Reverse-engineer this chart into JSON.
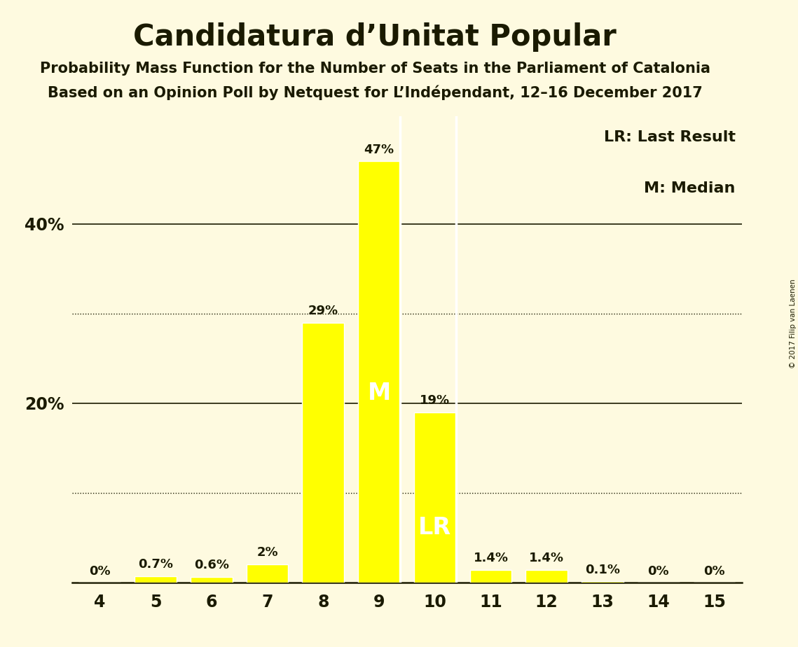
{
  "title": "Candidatura d’Unitat Popular",
  "subtitle1": "Probability Mass Function for the Number of Seats in the Parliament of Catalonia",
  "subtitle2": "Based on an Opinion Poll by Netquest for L’Indépendant, 12–16 December 2017",
  "copyright": "© 2017 Filip van Laenen",
  "legend_lr": "LR: Last Result",
  "legend_m": "M: Median",
  "categories": [
    4,
    5,
    6,
    7,
    8,
    9,
    10,
    11,
    12,
    13,
    14,
    15
  ],
  "values": [
    0.0,
    0.7,
    0.6,
    2.0,
    29.0,
    47.0,
    19.0,
    1.4,
    1.4,
    0.1,
    0.0,
    0.0
  ],
  "labels": [
    "0%",
    "0.7%",
    "0.6%",
    "2%",
    "29%",
    "47%",
    "19%",
    "1.4%",
    "1.4%",
    "0.1%",
    "0%",
    "0%"
  ],
  "bar_color": "#ffff00",
  "bar_edge_color": "#ffffff",
  "background_color": "#fefae0",
  "text_color": "#1a1a00",
  "median_seat": 9,
  "last_result_seat": 10,
  "solid_gridlines": [
    20.0,
    40.0
  ],
  "dotted_gridlines": [
    10.0,
    30.0
  ],
  "ylim": [
    0,
    52
  ],
  "xlim": [
    3.5,
    15.5
  ]
}
